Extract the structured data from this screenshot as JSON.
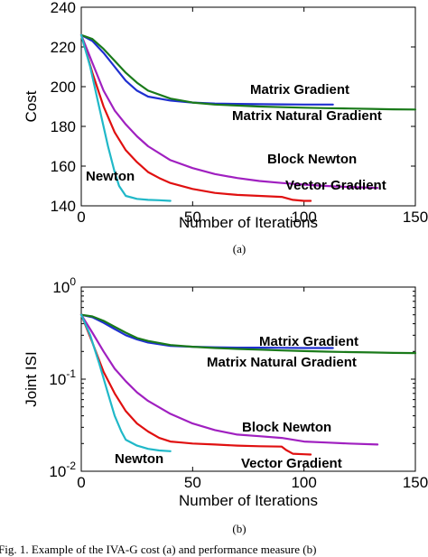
{
  "chart_data": [
    {
      "type": "line",
      "panel": "a",
      "caption": "(a)",
      "xlabel": "Number of Iterations",
      "ylabel": "Cost",
      "xlim": [
        0,
        150
      ],
      "ylim": [
        140,
        240
      ],
      "yscale": "linear",
      "xticks": [
        "0",
        "50",
        "100",
        "150"
      ],
      "yticks": [
        "140",
        "160",
        "180",
        "200",
        "220",
        "240"
      ],
      "grid": false,
      "series": [
        {
          "name": "Matrix Gradient",
          "color": "#1f2fd0",
          "x": [
            0,
            5,
            10,
            15,
            20,
            25,
            30,
            40,
            50,
            60,
            70,
            80,
            90,
            100,
            113
          ],
          "y": [
            226,
            223,
            217,
            210,
            203,
            198,
            195,
            193,
            192,
            191.5,
            191.3,
            191.2,
            191.1,
            191,
            191
          ]
        },
        {
          "name": "Matrix Natural Gradient",
          "color": "#1a7a1a",
          "x": [
            0,
            5,
            10,
            15,
            20,
            25,
            30,
            40,
            50,
            60,
            70,
            80,
            90,
            100,
            110,
            120,
            130,
            140,
            150
          ],
          "y": [
            226,
            224,
            219,
            213,
            207,
            202,
            198,
            194,
            192,
            191,
            190.5,
            190,
            189.7,
            189.4,
            189.2,
            189,
            188.8,
            188.6,
            188.5
          ]
        },
        {
          "name": "Block Newton",
          "color": "#a020c0",
          "x": [
            0,
            5,
            10,
            15,
            20,
            25,
            30,
            40,
            50,
            60,
            70,
            80,
            90,
            100,
            110,
            120,
            133
          ],
          "y": [
            226,
            212,
            198,
            188,
            181,
            175,
            170,
            163,
            159,
            156,
            154,
            152.5,
            151.5,
            150.7,
            150,
            149.5,
            149
          ]
        },
        {
          "name": "Vector Gradient",
          "color": "#e01010",
          "x": [
            0,
            5,
            10,
            15,
            20,
            25,
            30,
            35,
            40,
            50,
            60,
            70,
            80,
            90,
            95,
            100,
            103
          ],
          "y": [
            226,
            207,
            190,
            177,
            168,
            162,
            157,
            154,
            151.5,
            148.5,
            146.5,
            145.5,
            145,
            144.5,
            143,
            142.5,
            142.5
          ]
        },
        {
          "name": "Newton",
          "color": "#20b8c8",
          "x": [
            0,
            4,
            8,
            12,
            15,
            17,
            20,
            25,
            30,
            35,
            40
          ],
          "y": [
            226,
            210,
            190,
            170,
            157,
            150,
            145,
            143.5,
            143,
            142.8,
            142.5
          ]
        }
      ]
    },
    {
      "type": "line",
      "panel": "b",
      "caption": "(b)",
      "xlabel": "Number of Iterations",
      "ylabel": "Joint ISI",
      "xlim": [
        0,
        150
      ],
      "ylim": [
        0.01,
        1
      ],
      "yscale": "log",
      "xticks": [
        "0",
        "50",
        "100",
        "150"
      ],
      "yticks": [
        {
          "base": "10",
          "exp": "-2"
        },
        {
          "base": "10",
          "exp": "-1"
        },
        {
          "base": "10",
          "exp": "0"
        }
      ],
      "grid": false,
      "series": [
        {
          "name": "Matrix Gradient",
          "color": "#1f2fd0",
          "x": [
            0,
            5,
            10,
            15,
            20,
            25,
            30,
            40,
            50,
            60,
            70,
            80,
            90,
            100,
            113
          ],
          "y": [
            0.5,
            0.47,
            0.41,
            0.35,
            0.3,
            0.27,
            0.25,
            0.23,
            0.225,
            0.222,
            0.22,
            0.22,
            0.219,
            0.218,
            0.218
          ]
        },
        {
          "name": "Matrix Natural Gradient",
          "color": "#1a7a1a",
          "x": [
            0,
            5,
            10,
            15,
            20,
            25,
            30,
            40,
            50,
            60,
            70,
            80,
            90,
            100,
            110,
            120,
            130,
            140,
            150
          ],
          "y": [
            0.5,
            0.48,
            0.43,
            0.37,
            0.32,
            0.28,
            0.26,
            0.235,
            0.225,
            0.218,
            0.213,
            0.209,
            0.205,
            0.202,
            0.199,
            0.197,
            0.195,
            0.193,
            0.192
          ]
        },
        {
          "name": "Block Newton",
          "color": "#a020c0",
          "x": [
            0,
            5,
            10,
            15,
            20,
            25,
            30,
            40,
            50,
            60,
            70,
            80,
            90,
            100,
            110,
            120,
            133
          ],
          "y": [
            0.5,
            0.32,
            0.2,
            0.13,
            0.095,
            0.072,
            0.058,
            0.042,
            0.033,
            0.028,
            0.025,
            0.024,
            0.023,
            0.021,
            0.0205,
            0.02,
            0.0195
          ]
        },
        {
          "name": "Vector Gradient",
          "color": "#e01010",
          "x": [
            0,
            5,
            10,
            15,
            20,
            25,
            30,
            35,
            40,
            45,
            50,
            60,
            70,
            80,
            90,
            92,
            95,
            100,
            103
          ],
          "y": [
            0.5,
            0.25,
            0.12,
            0.07,
            0.045,
            0.033,
            0.027,
            0.023,
            0.021,
            0.0205,
            0.02,
            0.0195,
            0.019,
            0.0187,
            0.0185,
            0.017,
            0.0155,
            0.0153,
            0.0152
          ]
        },
        {
          "name": "Newton",
          "color": "#20b8c8",
          "x": [
            0,
            4,
            8,
            12,
            15,
            18,
            20,
            25,
            30,
            35,
            40
          ],
          "y": [
            0.5,
            0.3,
            0.15,
            0.07,
            0.04,
            0.027,
            0.022,
            0.019,
            0.0175,
            0.0168,
            0.0165
          ]
        }
      ]
    }
  ],
  "footer_text": "Fig. 1.  Example of the IVA-G cost (a) and performance measure (b)"
}
